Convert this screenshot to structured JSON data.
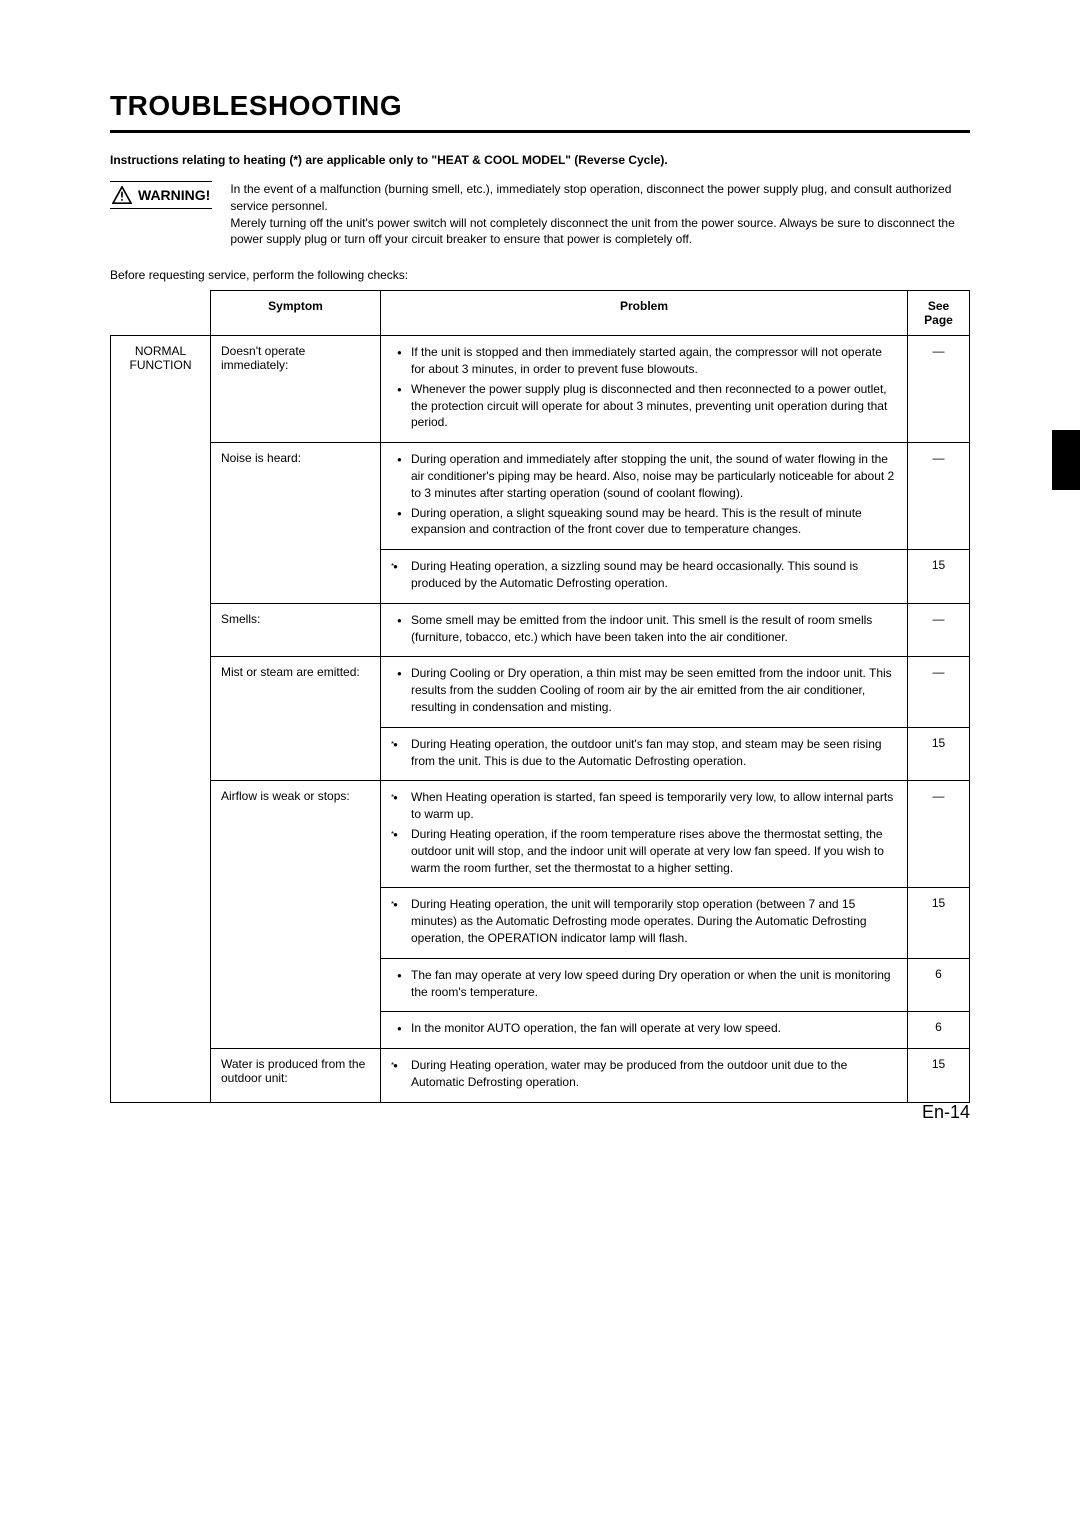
{
  "page": {
    "title": "TROUBLESHOOTING",
    "instructions_note": "Instructions relating to heating (*) are applicable only to \"HEAT & COOL MODEL\" (Reverse Cycle).",
    "warning_label": "WARNING!",
    "warning_text1": "In the event of a malfunction (burning smell, etc.), immediately stop operation, disconnect the power supply plug, and consult authorized service personnel.",
    "warning_text2": "Merely turning off the unit's power switch will not completely disconnect the unit from the power source. Always be sure to disconnect the power supply plug or turn off your circuit breaker to ensure that power is completely off.",
    "before_text": "Before requesting service, perform the following checks:",
    "footer": "En-14"
  },
  "headers": {
    "symptom": "Symptom",
    "problem": "Problem",
    "see_page": "See Page"
  },
  "category": {
    "line1": "NORMAL",
    "line2": "FUNCTION"
  },
  "rows": [
    {
      "symptom": "Doesn't operate immediately:",
      "problems": [
        {
          "star": false,
          "text": "If the unit is stopped and then immediately started again, the compressor will not operate for about 3 minutes, in order to prevent fuse blowouts."
        },
        {
          "star": false,
          "text": "Whenever the power supply plug is disconnected and then reconnected to a power outlet, the protection circuit will operate for about 3 minutes, preventing unit operation during that period."
        }
      ],
      "page": "—"
    },
    {
      "symptom": "Noise is heard:",
      "problems": [
        {
          "star": false,
          "text": "During operation and immediately after stopping the unit, the sound of water flowing in the air conditioner's piping may be heard. Also, noise may be particularly noticeable for about 2 to 3 minutes after starting operation (sound of coolant flowing)."
        },
        {
          "star": false,
          "text": "During operation, a slight squeaking sound may be heard. This is the result of minute expansion and contraction of the front cover due to temperature changes."
        }
      ],
      "page": "—"
    },
    {
      "symptom": "",
      "problems": [
        {
          "star": true,
          "text": "During Heating operation, a sizzling sound may be heard occasionally. This sound is produced by the Automatic Defrosting operation."
        }
      ],
      "page": "15"
    },
    {
      "symptom": "Smells:",
      "problems": [
        {
          "star": false,
          "text": "Some smell may be emitted from the indoor unit. This smell is the result of room smells (furniture, tobacco, etc.) which have been taken into the air conditioner."
        }
      ],
      "page": "—"
    },
    {
      "symptom": "Mist or steam are emitted:",
      "problems": [
        {
          "star": false,
          "text": "During Cooling or Dry operation, a thin mist may be seen emitted from the indoor unit. This results from the sudden Cooling of room air by the air emitted from the air conditioner, resulting in condensation and misting."
        }
      ],
      "page": "—"
    },
    {
      "symptom": "",
      "problems": [
        {
          "star": true,
          "text": "During Heating operation, the outdoor unit's fan may stop, and steam may be seen rising from the unit. This is due to the Automatic Defrosting operation."
        }
      ],
      "page": "15"
    },
    {
      "symptom": "Airflow is weak or stops:",
      "problems": [
        {
          "star": true,
          "text": "When Heating operation is started, fan speed is temporarily very low, to allow internal parts to warm up."
        },
        {
          "star": true,
          "text": "During Heating operation, if the room temperature rises above the thermostat setting, the outdoor unit will stop, and the indoor unit will operate at very low fan speed. If you wish to warm the room further, set the thermostat to a higher setting."
        }
      ],
      "page": "—"
    },
    {
      "symptom": "",
      "problems": [
        {
          "star": true,
          "text": "During Heating operation, the unit will temporarily stop operation (between 7 and 15 minutes) as the Automatic Defrosting mode operates. During the Automatic Defrosting operation, the OPERATION indicator lamp will flash."
        }
      ],
      "page": "15"
    },
    {
      "symptom": "",
      "problems": [
        {
          "star": false,
          "text": "The fan may operate at very low speed during Dry operation or when the unit is monitoring the room's temperature."
        }
      ],
      "page": "6"
    },
    {
      "symptom": "",
      "problems": [
        {
          "star": false,
          "text": "In the monitor AUTO operation, the fan will operate at very low speed."
        }
      ],
      "page": "6"
    },
    {
      "symptom": "Water is produced from the outdoor unit:",
      "problems": [
        {
          "star": true,
          "text": "During Heating operation, water may be produced from the outdoor unit due to the Automatic Defrosting operation."
        }
      ],
      "page": "15"
    }
  ]
}
